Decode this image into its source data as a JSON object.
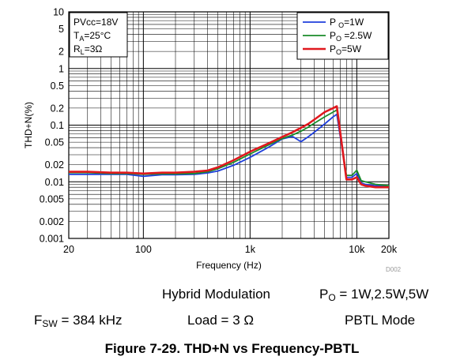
{
  "chart_data": {
    "type": "line",
    "title": "",
    "xlabel": "Frequency (Hz)",
    "ylabel": "THD+N(%)",
    "x_scale": "log",
    "y_scale": "log",
    "xlim": [
      20,
      20000
    ],
    "ylim": [
      0.001,
      10
    ],
    "grid": true,
    "legend_position": "top-right",
    "x_ticks": [
      {
        "value": 20,
        "label": "20"
      },
      {
        "value": 100,
        "label": "100"
      },
      {
        "value": 1000,
        "label": "1k"
      },
      {
        "value": 10000,
        "label": "10k"
      },
      {
        "value": 20000,
        "label": "20k"
      }
    ],
    "y_ticks": [
      {
        "value": 10,
        "label": "10"
      },
      {
        "value": 5,
        "label": "5"
      },
      {
        "value": 2,
        "label": "2"
      },
      {
        "value": 1,
        "label": "1"
      },
      {
        "value": 0.5,
        "label": "0.5"
      },
      {
        "value": 0.2,
        "label": "0.2"
      },
      {
        "value": 0.1,
        "label": "0.1"
      },
      {
        "value": 0.05,
        "label": "0.05"
      },
      {
        "value": 0.02,
        "label": "0.02"
      },
      {
        "value": 0.01,
        "label": "0.01"
      },
      {
        "value": 0.005,
        "label": "0.005"
      },
      {
        "value": 0.002,
        "label": "0.002"
      },
      {
        "value": 0.001,
        "label": "0.001"
      }
    ],
    "conditions": [
      {
        "main": "PVcc=18V",
        "sub": "",
        "tail": ""
      },
      {
        "main": "T",
        "sub": "A",
        "tail": "=25°C"
      },
      {
        "main": "R",
        "sub": "L",
        "tail": "=3Ω"
      }
    ],
    "series": [
      {
        "name": "P O=1W",
        "name_main": "P ",
        "name_sub": "O",
        "name_tail": "=1W",
        "color": "#1f3fdc",
        "x": [
          20,
          30,
          50,
          70,
          100,
          150,
          200,
          300,
          400,
          500,
          700,
          1000,
          1500,
          2000,
          2500,
          3000,
          3500,
          4000,
          5000,
          6000,
          6500,
          8000,
          9000,
          10000,
          11000,
          12000,
          15000,
          20000
        ],
        "y": [
          0.0135,
          0.0135,
          0.0135,
          0.0135,
          0.0125,
          0.0133,
          0.0133,
          0.0135,
          0.0143,
          0.0155,
          0.0195,
          0.027,
          0.041,
          0.057,
          0.063,
          0.051,
          0.062,
          0.075,
          0.105,
          0.14,
          0.155,
          0.012,
          0.012,
          0.014,
          0.0095,
          0.009,
          0.0085,
          0.0085
        ]
      },
      {
        "name": "PO =2.5W",
        "name_main": "P",
        "name_sub": "O",
        "name_tail": " =2.5W",
        "color": "#1a8c2a",
        "x": [
          20,
          30,
          50,
          70,
          100,
          150,
          200,
          300,
          400,
          500,
          700,
          1000,
          1500,
          2000,
          2500,
          3000,
          3500,
          4000,
          5000,
          6000,
          6500,
          8000,
          9000,
          10000,
          11000,
          12000,
          15000,
          20000
        ],
        "y": [
          0.0145,
          0.0145,
          0.014,
          0.014,
          0.0135,
          0.0138,
          0.0138,
          0.014,
          0.015,
          0.017,
          0.022,
          0.031,
          0.045,
          0.058,
          0.067,
          0.078,
          0.092,
          0.108,
          0.14,
          0.17,
          0.185,
          0.013,
          0.013,
          0.016,
          0.0105,
          0.01,
          0.009,
          0.0085
        ]
      },
      {
        "name": "PO=5W",
        "name_main": "P",
        "name_sub": "O",
        "name_tail": "=5W",
        "color": "#e0181e",
        "x": [
          20,
          30,
          50,
          70,
          100,
          150,
          200,
          300,
          400,
          500,
          700,
          1000,
          1500,
          2000,
          2500,
          3000,
          3500,
          4000,
          5000,
          6000,
          6500,
          8000,
          9000,
          10000,
          11000,
          12000,
          15000,
          20000
        ],
        "y": [
          0.015,
          0.015,
          0.0145,
          0.0145,
          0.014,
          0.0145,
          0.0145,
          0.015,
          0.0158,
          0.018,
          0.024,
          0.034,
          0.048,
          0.062,
          0.075,
          0.09,
          0.105,
          0.125,
          0.17,
          0.2,
          0.215,
          0.011,
          0.011,
          0.012,
          0.009,
          0.0085,
          0.008,
          0.008
        ]
      }
    ]
  },
  "watermark": "D002",
  "caption": {
    "row1_a": "Hybrid Modulation",
    "row1_b_main": "P",
    "row1_b_sub": "O",
    "row1_b_tail": " = 1W,2.5W,5W",
    "row2_a_main": "F",
    "row2_a_sub": "SW",
    "row2_a_tail": " = 384 kHz",
    "row2_b": "Load = 3 Ω",
    "row2_c": "PBTL Mode"
  },
  "figure_title": "Figure 7-29. THD+N vs Frequency-PBTL"
}
